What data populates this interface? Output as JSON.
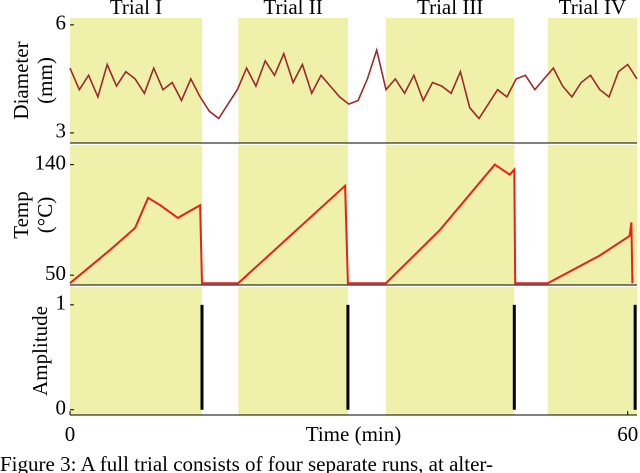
{
  "chart_data": [
    {
      "type": "line",
      "ylabel": [
        "Diameter",
        "(mm)"
      ],
      "color": "#9b2b2b",
      "regions": [
        {
          "label": "Trial I",
          "start": 0,
          "end": 14.2
        },
        {
          "label": "Trial II",
          "start": 18.1,
          "end": 29.9
        },
        {
          "label": "Trial III",
          "start": 34.0,
          "end": 47.8
        },
        {
          "label": "Trial IV",
          "start": 51.4,
          "end": 61
        }
      ],
      "region_color": "#eff0aa",
      "x": [
        0,
        1,
        2,
        3,
        4,
        5,
        6,
        7,
        8,
        9,
        10,
        11,
        12,
        13,
        14,
        15,
        16,
        17,
        18,
        19,
        20,
        21,
        22,
        23,
        24,
        25,
        26,
        27,
        28,
        29,
        30,
        31,
        32,
        33,
        34,
        35,
        36,
        37,
        38,
        39,
        40,
        41,
        42,
        43,
        44,
        45,
        46,
        47,
        48,
        49,
        50,
        51,
        52,
        53,
        54,
        55,
        56,
        57,
        58,
        59,
        60,
        61
      ],
      "values": [
        4.8,
        4.2,
        4.6,
        4.0,
        4.9,
        4.3,
        4.7,
        4.5,
        4.1,
        4.8,
        4.2,
        4.4,
        3.9,
        4.5,
        4.0,
        3.6,
        3.4,
        3.8,
        4.2,
        4.8,
        4.3,
        5.0,
        4.6,
        5.2,
        4.4,
        4.9,
        4.1,
        4.6,
        4.3,
        4.0,
        3.8,
        3.9,
        4.5,
        5.3,
        4.2,
        4.5,
        4.1,
        4.6,
        3.9,
        4.4,
        4.3,
        4.1,
        4.7,
        3.7,
        3.4,
        3.8,
        4.2,
        4.0,
        4.5,
        4.6,
        4.2,
        4.5,
        4.8,
        4.3,
        4.0,
        4.4,
        4.6,
        4.2,
        4.0,
        4.7,
        4.9,
        4.5
      ],
      "xlim": [
        0,
        61
      ],
      "ylim": [
        2.72,
        6.19
      ],
      "yticks": [
        3,
        6
      ]
    },
    {
      "type": "line",
      "ylabel": [
        "Temp",
        "(°C)"
      ],
      "color": "#e8201c",
      "x": [
        0,
        4.3,
        7.0,
        8.4,
        9.7,
        11.6,
        14.0,
        14.2,
        18.1,
        29.6,
        29.9,
        34.0,
        39.8,
        45.7,
        47.3,
        47.8,
        47.9,
        51.4,
        57.0,
        60.2,
        60.4,
        60.5
      ],
      "values": [
        43.5,
        70.5,
        88.5,
        113,
        107,
        96.6,
        107,
        43.5,
        43.5,
        122.8,
        43.5,
        43.5,
        86.8,
        140,
        131.8,
        136,
        43.5,
        43.5,
        66,
        82,
        93,
        43.5
      ],
      "xlim": [
        0,
        61
      ],
      "ylim": [
        42,
        156
      ],
      "yticks": [
        50,
        140
      ]
    },
    {
      "type": "bar",
      "ylabel": [
        "Amplitude"
      ],
      "color": "#000000",
      "xlabel": "Time (min)",
      "x": [
        14.2,
        29.9,
        47.8,
        60.8
      ],
      "values": [
        1,
        1,
        1,
        1
      ],
      "xlim": [
        0,
        61
      ],
      "ylim": [
        -0.05,
        1.17
      ],
      "yticks": [
        0,
        1
      ],
      "xticks": [
        0,
        60
      ]
    }
  ],
  "caption": "Figure 3: A full trial consists of four separate runs, at alter-"
}
